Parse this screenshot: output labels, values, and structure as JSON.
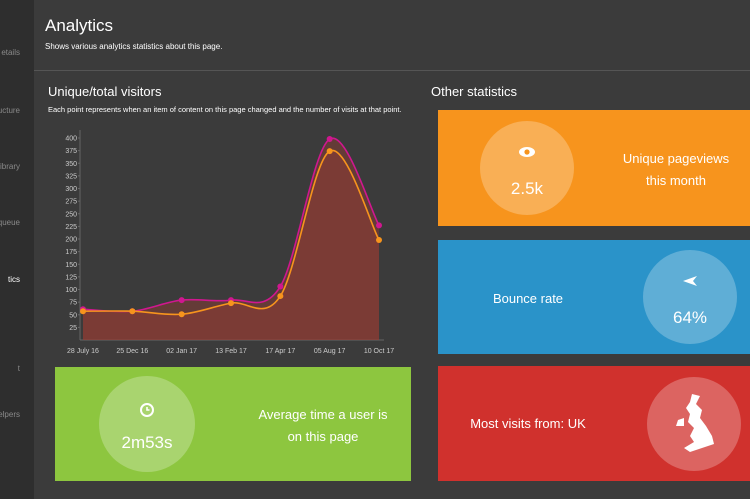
{
  "sidebar": {
    "items": [
      "etails",
      "ucture",
      "ibrary",
      "g queue",
      "tics",
      "t",
      "elpers"
    ]
  },
  "header": {
    "title": "Analytics",
    "subtitle": "Shows various analytics statistics about this page."
  },
  "visitors": {
    "title": "Unique/total visitors",
    "description": "Each point represents when an item of content on this page changed and the number of visits at that point."
  },
  "chart_data": {
    "type": "line",
    "categories": [
      "28 July 16",
      "25 Dec 16",
      "02 Jan 17",
      "13 Feb 17",
      "17 Apr 17",
      "05 Aug 17",
      "10 Oct 17"
    ],
    "series": [
      {
        "color": "#d0178f",
        "values": [
          61,
          57,
          79,
          79,
          106,
          398,
          227
        ]
      },
      {
        "color": "#f7941d",
        "values": [
          57,
          57,
          51,
          73,
          87,
          374,
          198
        ]
      }
    ],
    "ylim": [
      0,
      400
    ],
    "yticks": [
      25,
      50,
      75,
      100,
      125,
      150,
      175,
      200,
      225,
      250,
      275,
      300,
      325,
      350,
      375,
      400
    ],
    "grid": false
  },
  "other": {
    "title": "Other statistics"
  },
  "cards": {
    "time": {
      "value": "2m53s",
      "lines": [
        "Average time a user is",
        "on this page"
      ]
    },
    "pageviews": {
      "value": "2.5k",
      "lines": [
        "Unique pageviews",
        "this month"
      ]
    },
    "bounce": {
      "label": "Bounce rate",
      "value": "64%"
    },
    "location": {
      "label": "Most visits from: UK"
    }
  }
}
